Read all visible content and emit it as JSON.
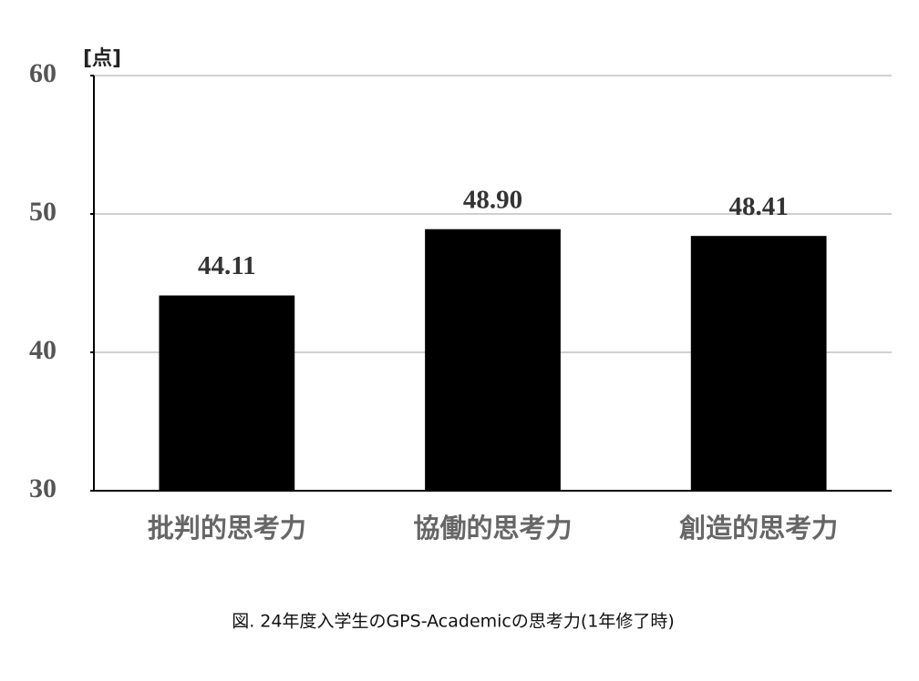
{
  "chart_data": {
    "type": "bar",
    "y_unit_label": "[点]",
    "caption": "図. 24年度入学生のGPS-Academicの思考力(1年修了時)",
    "categories": [
      "批判的思考力",
      "協働的思考力",
      "創造的思考力"
    ],
    "values": [
      44.11,
      48.9,
      48.41
    ],
    "value_labels": [
      "44.11",
      "48.90",
      "48.41"
    ],
    "color": "#000000",
    "ylim": [
      30,
      60
    ],
    "yticks": [
      30,
      40,
      50,
      60
    ],
    "grid": true
  }
}
